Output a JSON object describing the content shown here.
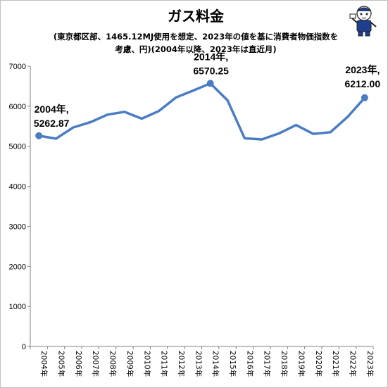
{
  "chart_data": {
    "type": "line",
    "title": "ガス料金",
    "subtitle_lines": [
      "(東京都区部、1465.12MJ使用を想定、2023年の値を基に消費者物価指数を",
      "考慮、円)(2004年以降、2023年は直近月)"
    ],
    "categories": [
      "2004年",
      "2005年",
      "2006年",
      "2007年",
      "2008年",
      "2009年",
      "2010年",
      "2011年",
      "2012年",
      "2013年",
      "2014年",
      "2015年",
      "2016年",
      "2017年",
      "2018年",
      "2019年",
      "2020年",
      "2021年",
      "2022年",
      "2023年"
    ],
    "series": [
      {
        "color": "#4a7cc4",
        "values": [
          5262.87,
          5190,
          5470,
          5600,
          5790,
          5860,
          5690,
          5880,
          6220,
          6390,
          6570.25,
          6150,
          5200,
          5170,
          5320,
          5530,
          5310,
          5350,
          5730,
          6212.0
        ]
      }
    ],
    "ylim": [
      0,
      7000
    ],
    "yticks": [
      "0",
      "1000",
      "2000",
      "3000",
      "4000",
      "5000",
      "6000",
      "7000"
    ],
    "grid": false,
    "annotations": [
      {
        "index": 0,
        "line1": "2004年,",
        "line2": "5262.87"
      },
      {
        "index": 10,
        "line1": "2014年,",
        "line2": "6570.25"
      },
      {
        "index": 19,
        "line1": "2023年,",
        "line2": "6212.00"
      }
    ]
  },
  "mascot_icon": "cartoon-mascot-icon"
}
